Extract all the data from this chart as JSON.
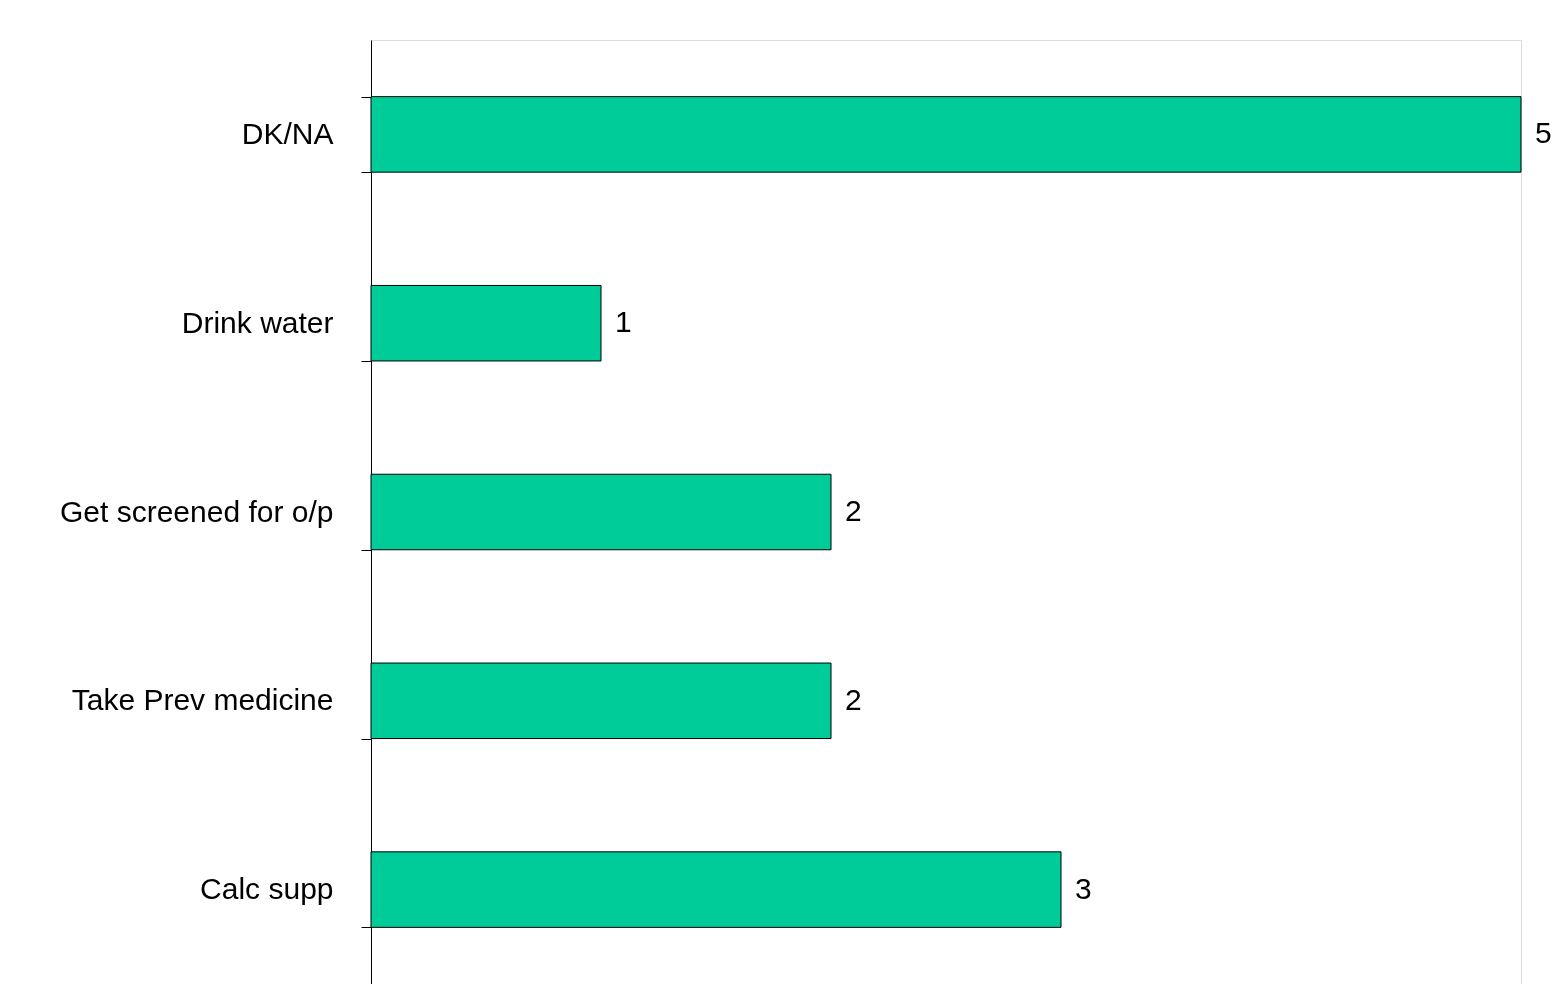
{
  "chart_data": {
    "type": "bar",
    "orientation": "horizontal",
    "categories": [
      "DK/NA",
      "Drink water",
      "Get screened for o/p",
      "Take Prev medicine",
      "Calc supp"
    ],
    "values": [
      5,
      1,
      2,
      2,
      3
    ],
    "color": "#00cc99",
    "data_labels": true,
    "grid": false
  }
}
